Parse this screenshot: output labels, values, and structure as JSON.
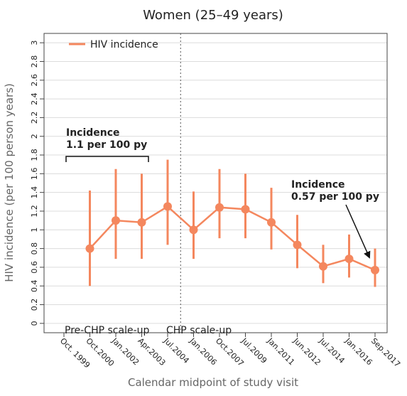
{
  "chart_data": {
    "type": "line",
    "title": "Women (25–49 years)",
    "x_label": "Calendar midpoint of study visit",
    "y_label": "HIV incidence (per 100 person years)",
    "categories": [
      "Oct. 1999",
      "Oct.2000",
      "Jan.2002",
      "Apr.2003",
      "Jul.2004",
      "Jan.2006",
      "Oct.2007",
      "Jul.2009",
      "Jan.2011",
      "Jun.2012",
      "Jul.2014",
      "Jan.2016",
      "Sep.2017"
    ],
    "series": [
      {
        "name": "HIV incidence",
        "color": "#f4875e",
        "values": [
          null,
          0.8,
          1.1,
          1.08,
          1.25,
          1.0,
          1.24,
          1.22,
          1.08,
          0.84,
          0.61,
          0.69,
          0.57
        ],
        "lower": [
          null,
          0.4,
          0.69,
          0.69,
          0.84,
          0.69,
          0.91,
          0.91,
          0.79,
          0.59,
          0.43,
          0.49,
          0.39
        ],
        "upper": [
          null,
          1.42,
          1.65,
          1.6,
          1.75,
          1.41,
          1.65,
          1.6,
          1.45,
          1.16,
          0.84,
          0.95,
          0.8
        ]
      }
    ],
    "ylim": [
      -0.1,
      3.1
    ],
    "yticks": [
      0,
      0.2,
      0.4,
      0.6,
      0.8,
      1,
      1.2,
      1.4,
      1.6,
      1.8,
      2,
      2.2,
      2.4,
      2.6,
      2.8,
      3
    ],
    "grid": true,
    "legend": "top-left",
    "annotations": {
      "pre_incidence": [
        "Incidence",
        "1.1 per 100 py"
      ],
      "post_incidence": [
        "Incidence",
        "0.57 per 100 py"
      ],
      "pre_period": "Pre-CHP scale-up",
      "post_period": "CHP scale-up"
    }
  }
}
